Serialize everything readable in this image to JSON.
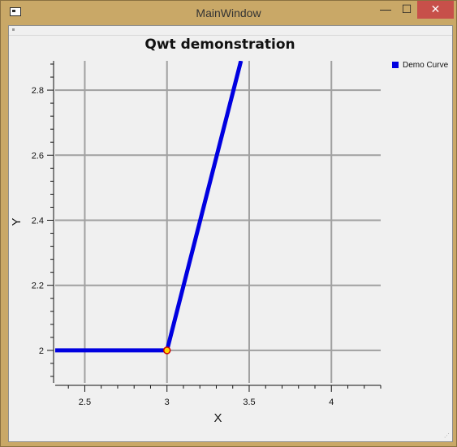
{
  "window": {
    "title": "MainWindow",
    "minimize_glyph": "—",
    "maximize_glyph": "☐",
    "close_glyph": "✕"
  },
  "plot": {
    "title": "Qwt demonstration",
    "legend_label": "Demo Curve"
  },
  "chart_data": {
    "type": "line",
    "title": "Qwt demonstration",
    "xlabel": "X",
    "ylabel": "Y",
    "xlim": [
      2.32,
      4.3
    ],
    "ylim": [
      1.9,
      2.89
    ],
    "x_ticks": [
      2.5,
      3,
      3.5,
      4
    ],
    "x_tick_labels": [
      "2.5",
      "3",
      "3.5",
      "4"
    ],
    "y_ticks": [
      2,
      2.2,
      2.4,
      2.6,
      2.8
    ],
    "y_tick_labels": [
      "2",
      "2.2",
      "2.4",
      "2.6",
      "2.8"
    ],
    "grid": true,
    "legend_position": "right",
    "series": [
      {
        "name": "Demo Curve",
        "color": "#0000e0",
        "x": [
          2.32,
          3.0,
          3.45
        ],
        "y": [
          2.0,
          2.0,
          2.89
        ]
      }
    ],
    "markers": [
      {
        "x": 3.0,
        "y": 2.0,
        "fill": "#ffd700",
        "stroke": "#cc0000"
      }
    ]
  }
}
